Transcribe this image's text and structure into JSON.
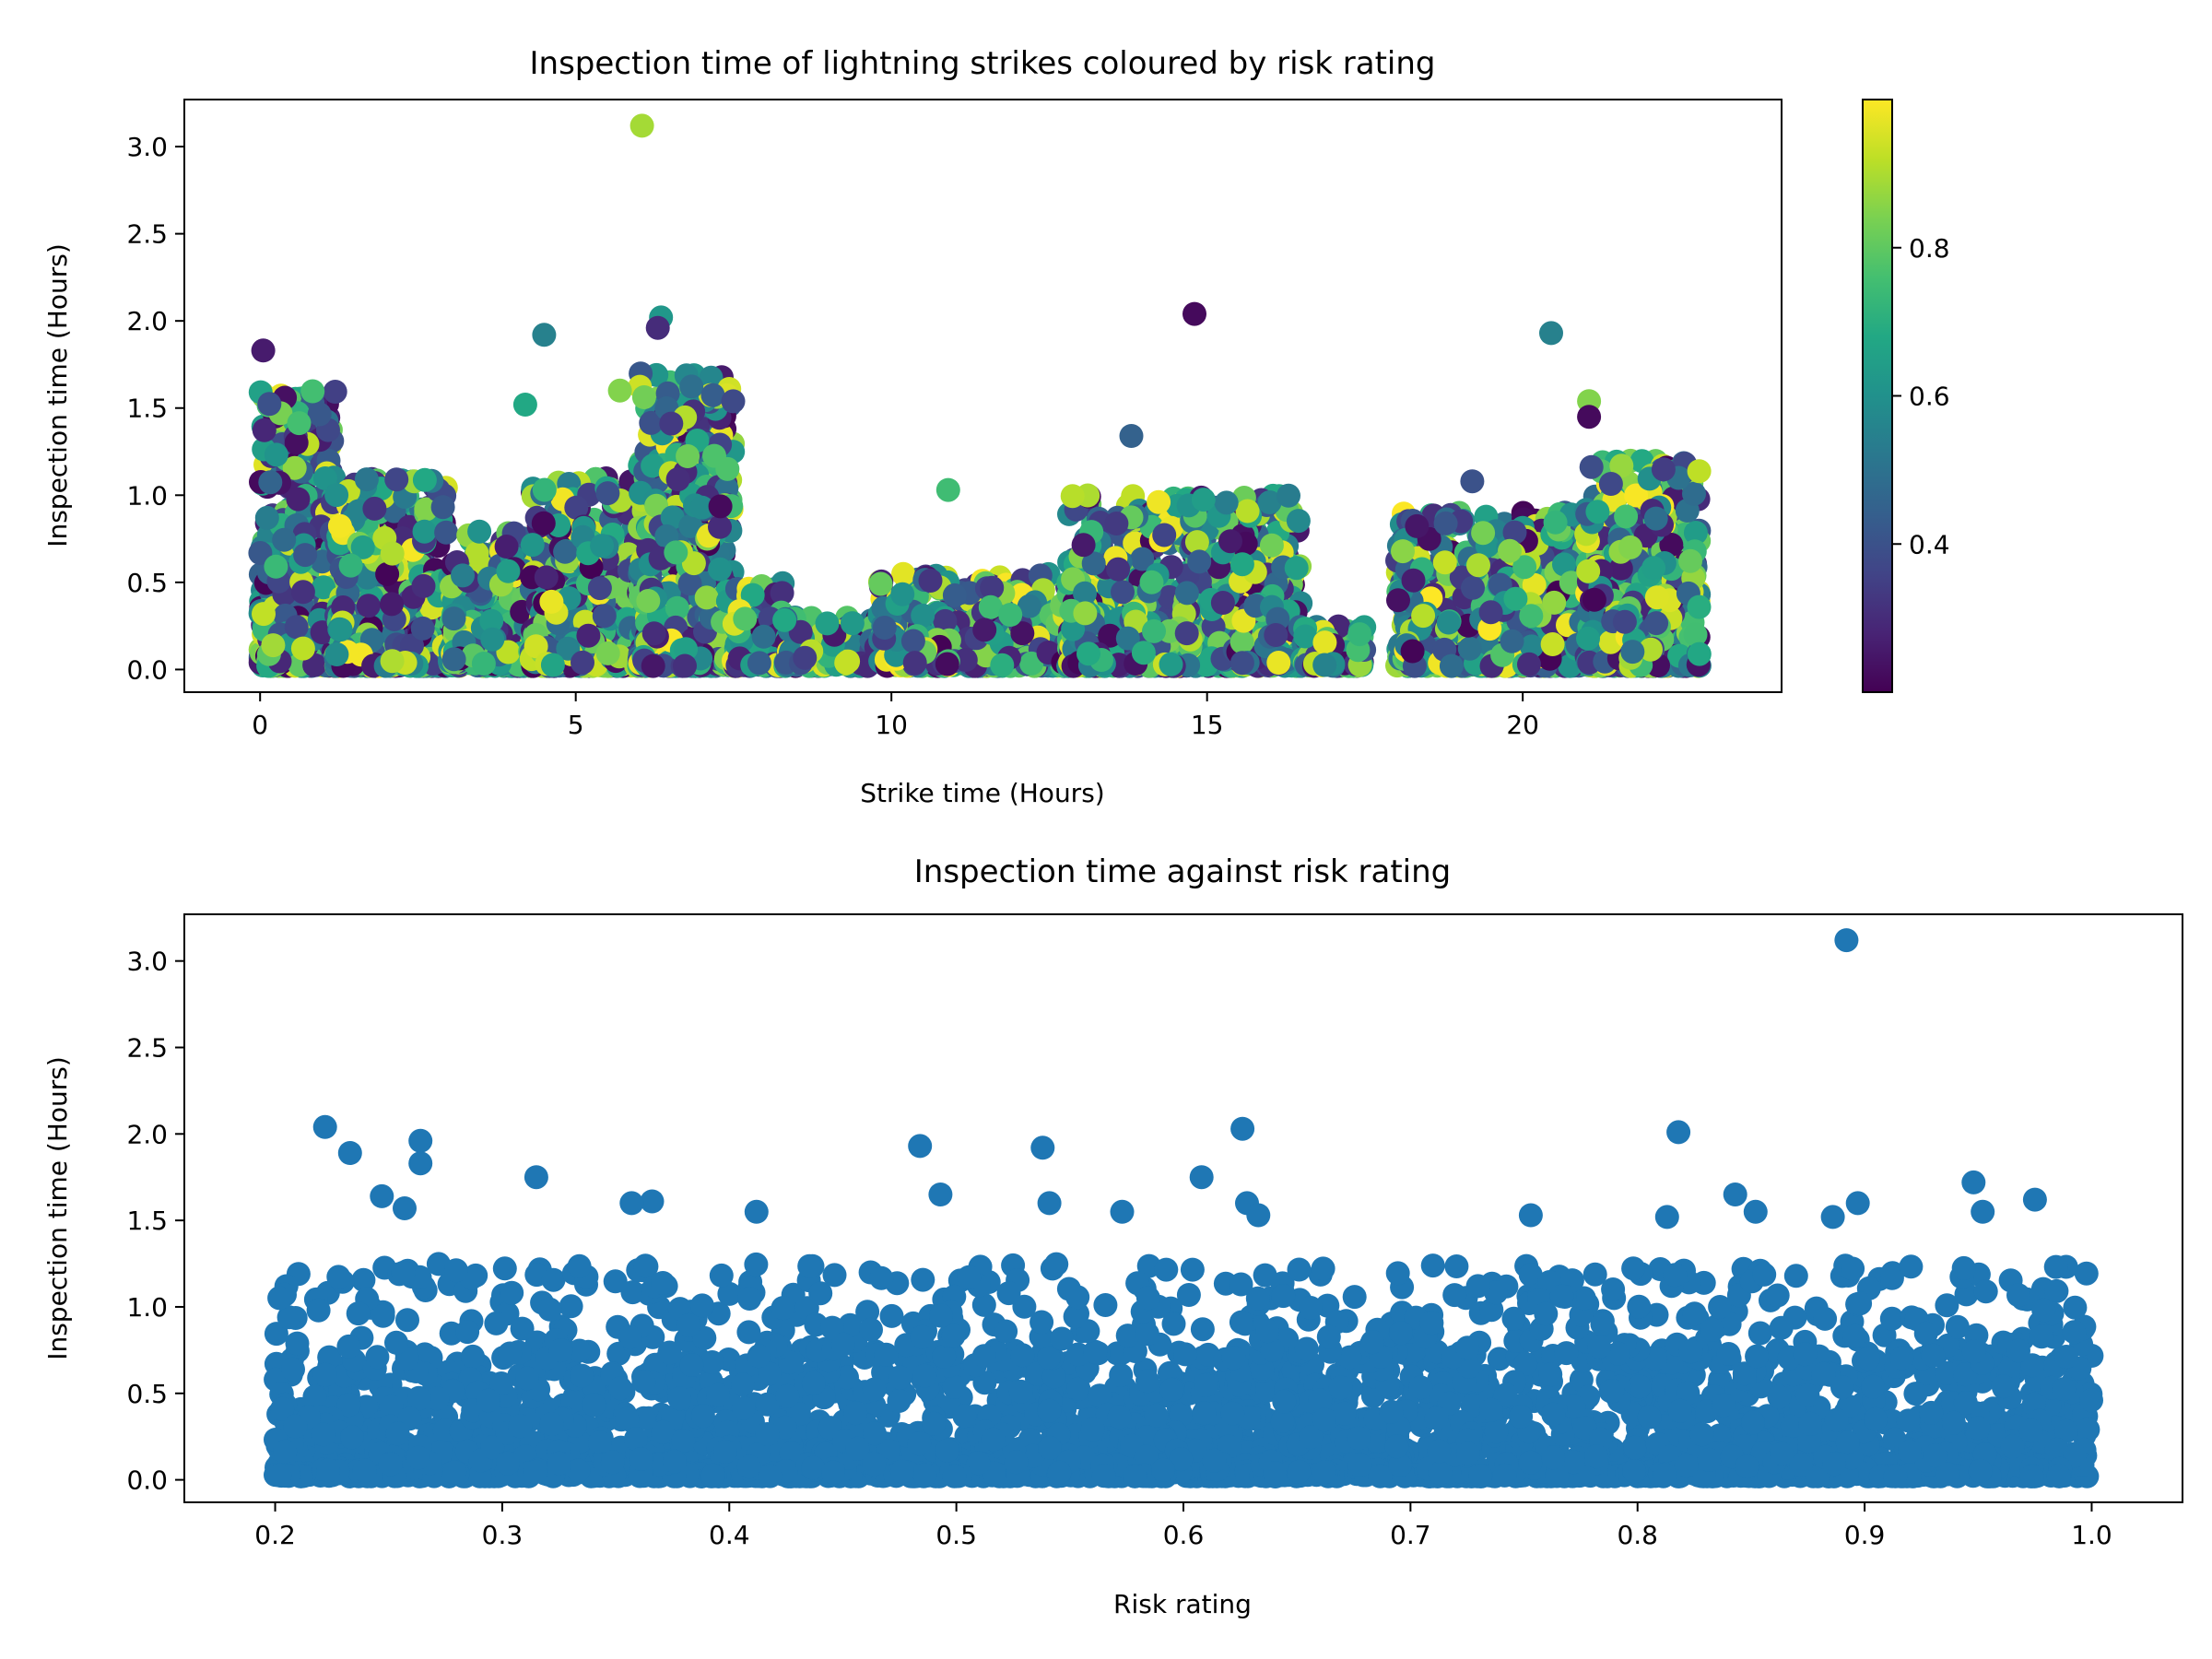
{
  "chart_data": [
    {
      "type": "scatter",
      "title": "Inspection time of lightning strikes coloured by risk rating",
      "xlabel": "Strike time (Hours)",
      "ylabel": "Inspection time (Hours)",
      "xlim": [
        -1.2,
        24.1
      ],
      "ylim": [
        -0.13,
        3.27
      ],
      "xticks": [
        0,
        5,
        10,
        15,
        20
      ],
      "yticks": [
        0.0,
        0.5,
        1.0,
        1.5,
        2.0,
        2.5,
        3.0
      ],
      "colormap": "viridis",
      "colorbar": {
        "range": [
          0.2,
          1.0
        ],
        "ticks": [
          0.4,
          0.6,
          0.8
        ]
      },
      "grid": false,
      "clusters": [
        {
          "x_range": [
            0.0,
            1.2
          ],
          "y_max": 1.6
        },
        {
          "x_range": [
            1.2,
            3.0
          ],
          "y_max": 1.1
        },
        {
          "x_range": [
            3.0,
            4.3
          ],
          "y_max": 0.8
        },
        {
          "x_range": [
            4.3,
            6.0
          ],
          "y_max": 1.1
        },
        {
          "x_range": [
            6.0,
            7.5
          ],
          "y_max": 1.7
        },
        {
          "x_range": [
            7.5,
            8.3
          ],
          "y_max": 0.5
        },
        {
          "x_range": [
            8.3,
            9.8
          ],
          "y_max": 0.3
        },
        {
          "x_range": [
            9.8,
            12.8
          ],
          "y_max": 0.55
        },
        {
          "x_range": [
            12.8,
            16.5
          ],
          "y_max": 1.0
        },
        {
          "x_range": [
            16.5,
            17.5
          ],
          "y_max": 0.25
        },
        {
          "x_range": [
            18.0,
            21.0
          ],
          "y_max": 0.9
        },
        {
          "x_range": [
            21.0,
            22.8
          ],
          "y_max": 1.2
        }
      ],
      "notable_points": [
        {
          "x": 6.05,
          "y": 3.12,
          "risk": 0.89
        },
        {
          "x": 14.8,
          "y": 2.04,
          "risk": 0.22
        },
        {
          "x": 20.45,
          "y": 1.93,
          "risk": 0.55
        },
        {
          "x": 4.5,
          "y": 1.92,
          "risk": 0.55
        },
        {
          "x": 0.05,
          "y": 1.83,
          "risk": 0.26
        },
        {
          "x": 6.35,
          "y": 2.02,
          "risk": 0.62
        },
        {
          "x": 6.3,
          "y": 1.96,
          "risk": 0.3
        },
        {
          "x": 21.05,
          "y": 1.54,
          "risk": 0.85
        },
        {
          "x": 21.05,
          "y": 1.45,
          "risk": 0.22
        },
        {
          "x": 4.2,
          "y": 1.52,
          "risk": 0.68
        },
        {
          "x": 5.7,
          "y": 1.6,
          "risk": 0.85
        },
        {
          "x": 13.8,
          "y": 1.34,
          "risk": 0.45
        },
        {
          "x": 19.2,
          "y": 1.08,
          "risk": 0.4
        },
        {
          "x": 10.9,
          "y": 1.03,
          "risk": 0.75
        }
      ]
    },
    {
      "type": "scatter",
      "title": "Inspection time against risk rating",
      "xlabel": "Risk rating",
      "ylabel": "Inspection time (Hours)",
      "xlim": [
        0.16,
        1.04
      ],
      "ylim": [
        -0.13,
        3.27
      ],
      "xticks": [
        0.2,
        0.3,
        0.4,
        0.5,
        0.6,
        0.7,
        0.8,
        0.9,
        1.0
      ],
      "yticks": [
        0.0,
        0.5,
        1.0,
        1.5,
        2.0,
        2.5,
        3.0
      ],
      "color": "#1f77b4",
      "grid": false,
      "x_range": [
        0.2,
        1.0
      ],
      "dense_band_y_max": 0.75,
      "notable_points": [
        {
          "x": 0.892,
          "y": 3.12
        },
        {
          "x": 0.222,
          "y": 2.04
        },
        {
          "x": 0.626,
          "y": 2.03
        },
        {
          "x": 0.818,
          "y": 2.01
        },
        {
          "x": 0.264,
          "y": 1.96
        },
        {
          "x": 0.484,
          "y": 1.93
        },
        {
          "x": 0.538,
          "y": 1.92
        },
        {
          "x": 0.233,
          "y": 1.89
        },
        {
          "x": 0.264,
          "y": 1.83
        },
        {
          "x": 0.608,
          "y": 1.75
        },
        {
          "x": 0.315,
          "y": 1.75
        },
        {
          "x": 0.948,
          "y": 1.72
        },
        {
          "x": 0.493,
          "y": 1.65
        },
        {
          "x": 0.843,
          "y": 1.65
        },
        {
          "x": 0.247,
          "y": 1.64
        },
        {
          "x": 0.975,
          "y": 1.62
        },
        {
          "x": 0.366,
          "y": 1.61
        },
        {
          "x": 0.897,
          "y": 1.6
        },
        {
          "x": 0.541,
          "y": 1.6
        },
        {
          "x": 0.628,
          "y": 1.6
        },
        {
          "x": 0.357,
          "y": 1.6
        },
        {
          "x": 0.257,
          "y": 1.57
        },
        {
          "x": 0.573,
          "y": 1.55
        },
        {
          "x": 0.412,
          "y": 1.55
        },
        {
          "x": 0.852,
          "y": 1.55
        },
        {
          "x": 0.952,
          "y": 1.55
        },
        {
          "x": 0.753,
          "y": 1.53
        },
        {
          "x": 0.886,
          "y": 1.52
        },
        {
          "x": 0.633,
          "y": 1.53
        },
        {
          "x": 0.813,
          "y": 1.52
        }
      ]
    }
  ]
}
